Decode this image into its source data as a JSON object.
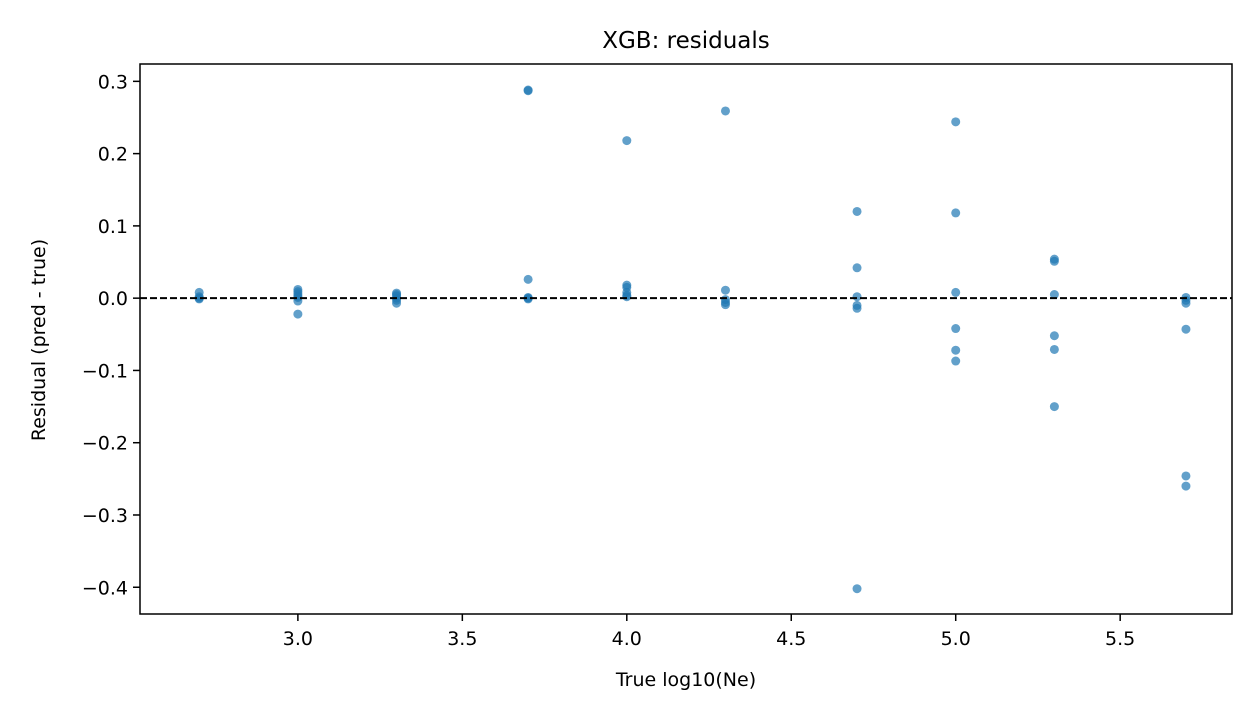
{
  "chart_data": {
    "type": "scatter",
    "title": "XGB: residuals",
    "xlabel": "True log10(Ne)",
    "ylabel": "Residual (pred - true)",
    "xlim": [
      2.52,
      5.84
    ],
    "ylim": [
      -0.437,
      0.324
    ],
    "xticks": [
      3.0,
      3.5,
      4.0,
      4.5,
      5.0,
      5.5
    ],
    "xtick_labels": [
      "3.0",
      "3.5",
      "4.0",
      "4.5",
      "5.0",
      "5.5"
    ],
    "yticks": [
      0.3,
      0.2,
      0.1,
      0.0,
      -0.1,
      -0.2,
      -0.3,
      -0.4
    ],
    "ytick_labels": [
      "0.3",
      "0.2",
      "0.1",
      "0.0",
      "−0.1",
      "−0.2",
      "−0.3",
      "−0.4"
    ],
    "grid": false,
    "point_color": "#1f77b4",
    "reference_line": {
      "y": 0.0,
      "style": "dashed",
      "color": "#000000"
    },
    "points": [
      {
        "x": 2.7,
        "y": 0.008
      },
      {
        "x": 2.7,
        "y": 0.002
      },
      {
        "x": 2.7,
        "y": 0.0
      },
      {
        "x": 2.7,
        "y": -0.001
      },
      {
        "x": 3.0,
        "y": 0.012
      },
      {
        "x": 3.0,
        "y": 0.009
      },
      {
        "x": 3.0,
        "y": 0.006
      },
      {
        "x": 3.0,
        "y": 0.003
      },
      {
        "x": 3.0,
        "y": 0.001
      },
      {
        "x": 3.0,
        "y": -0.004
      },
      {
        "x": 3.0,
        "y": -0.022
      },
      {
        "x": 3.3,
        "y": 0.007
      },
      {
        "x": 3.3,
        "y": 0.005
      },
      {
        "x": 3.3,
        "y": 0.003
      },
      {
        "x": 3.3,
        "y": 0.0
      },
      {
        "x": 3.3,
        "y": -0.003
      },
      {
        "x": 3.3,
        "y": -0.007
      },
      {
        "x": 3.7,
        "y": 0.288
      },
      {
        "x": 3.7,
        "y": 0.287
      },
      {
        "x": 3.7,
        "y": 0.026
      },
      {
        "x": 3.7,
        "y": 0.001
      },
      {
        "x": 3.7,
        "y": 0.0
      },
      {
        "x": 3.7,
        "y": -0.001
      },
      {
        "x": 4.0,
        "y": 0.218
      },
      {
        "x": 4.0,
        "y": 0.018
      },
      {
        "x": 4.0,
        "y": 0.015
      },
      {
        "x": 4.0,
        "y": 0.008
      },
      {
        "x": 4.0,
        "y": 0.004
      },
      {
        "x": 4.0,
        "y": 0.002
      },
      {
        "x": 4.3,
        "y": 0.259
      },
      {
        "x": 4.3,
        "y": 0.011
      },
      {
        "x": 4.3,
        "y": -0.002
      },
      {
        "x": 4.3,
        "y": -0.006
      },
      {
        "x": 4.3,
        "y": -0.009
      },
      {
        "x": 4.7,
        "y": 0.12
      },
      {
        "x": 4.7,
        "y": 0.042
      },
      {
        "x": 4.7,
        "y": 0.002
      },
      {
        "x": 4.7,
        "y": -0.01
      },
      {
        "x": 4.7,
        "y": -0.014
      },
      {
        "x": 4.7,
        "y": -0.402
      },
      {
        "x": 5.0,
        "y": 0.244
      },
      {
        "x": 5.0,
        "y": 0.118
      },
      {
        "x": 5.0,
        "y": 0.008
      },
      {
        "x": 5.0,
        "y": -0.042
      },
      {
        "x": 5.0,
        "y": -0.072
      },
      {
        "x": 5.0,
        "y": -0.087
      },
      {
        "x": 5.3,
        "y": 0.054
      },
      {
        "x": 5.3,
        "y": 0.051
      },
      {
        "x": 5.3,
        "y": 0.005
      },
      {
        "x": 5.3,
        "y": -0.052
      },
      {
        "x": 5.3,
        "y": -0.071
      },
      {
        "x": 5.3,
        "y": -0.15
      },
      {
        "x": 5.7,
        "y": 0.001
      },
      {
        "x": 5.7,
        "y": -0.003
      },
      {
        "x": 5.7,
        "y": -0.007
      },
      {
        "x": 5.7,
        "y": -0.043
      },
      {
        "x": 5.7,
        "y": -0.246
      },
      {
        "x": 5.7,
        "y": -0.26
      }
    ]
  }
}
